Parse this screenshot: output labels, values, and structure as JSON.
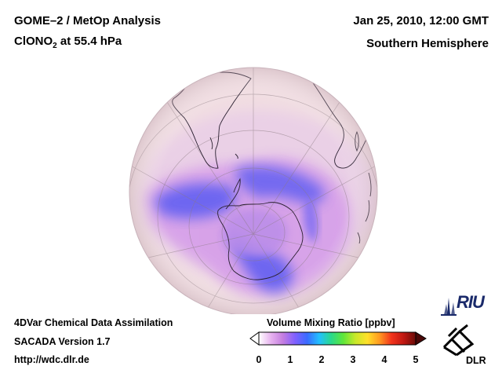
{
  "header": {
    "title_line1": "GOME–2 / MetOp Analysis",
    "species_main": "ClONO",
    "species_sub": "2",
    "species_rest": " at 55.4 hPa",
    "date": "Jan 25, 2010, 12:00 GMT",
    "region": "Southern Hemisphere"
  },
  "footer": {
    "line1": "4DVar Chemical Data Assimilation",
    "line2": "SACADA Version 1.7",
    "line3": "http://wdc.dlr.de"
  },
  "colorbar": {
    "title": "Volume Mixing Ratio [ppbv]",
    "ticks": [
      "0",
      "1",
      "2",
      "3",
      "4",
      "5"
    ],
    "min": 0,
    "max": 5,
    "colors": [
      "#ffffff",
      "#e7b3ef",
      "#c47de0",
      "#8060ff",
      "#3a6bff",
      "#22c0ff",
      "#2ad98a",
      "#5fe63a",
      "#c8e82a",
      "#ffe02a",
      "#ff9a22",
      "#f2331c",
      "#c01812",
      "#6a0c08"
    ]
  },
  "logos": {
    "riu": "RIU",
    "dlr": "DLR"
  },
  "map": {
    "projection": "orthographic, south polar view",
    "field_low_color": "#5c5cf2",
    "field_mid_color": "#c98ae8",
    "background_color": "#f1dde2"
  }
}
